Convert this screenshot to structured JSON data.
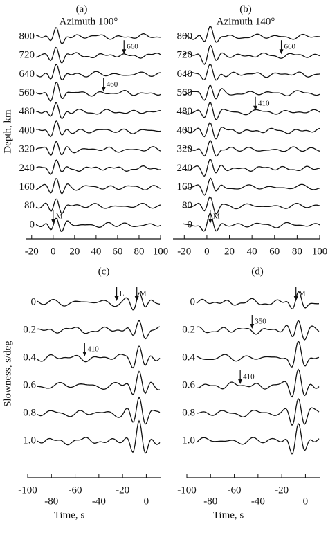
{
  "chart_data": [
    {
      "type": "waveform",
      "panel_label": "(a)",
      "title": "Azimuth 100°",
      "ylabel": "Depth, km",
      "categories": [
        "800",
        "720",
        "640",
        "560",
        "480",
        "400",
        "320",
        "240",
        "160",
        "80",
        "0"
      ],
      "xlim": [
        -25,
        100
      ],
      "xticks": [
        -20,
        0,
        20,
        40,
        60,
        80,
        100
      ],
      "annotations": [
        {
          "text": "M",
          "x": 0,
          "trace": "0"
        },
        {
          "text": "660",
          "x": 66,
          "trace": "720"
        },
        {
          "text": "460",
          "x": 47,
          "trace": "560"
        }
      ]
    },
    {
      "type": "waveform",
      "panel_label": "(b)",
      "title": "Azimuth 140°",
      "categories": [
        "800",
        "720",
        "640",
        "560",
        "480",
        "400",
        "320",
        "240",
        "160",
        "80",
        "0"
      ],
      "xlim": [
        -30,
        100
      ],
      "xticks": [
        -20,
        0,
        20,
        40,
        60,
        80,
        100
      ],
      "annotations": [
        {
          "text": "M",
          "x": 3,
          "trace": "0"
        },
        {
          "text": "660",
          "x": 66,
          "trace": "720"
        },
        {
          "text": "410",
          "x": 43,
          "trace": "480"
        }
      ]
    },
    {
      "type": "waveform",
      "panel_label": "(c)",
      "ylabel": "Slowness, s/deg",
      "xlabel": "Time, s",
      "categories": [
        "0",
        "0.2",
        "0.4",
        "0.6",
        "0.8",
        "1.0"
      ],
      "xlim": [
        -100,
        12
      ],
      "xticks": [
        -100,
        -80,
        -60,
        -40,
        -20,
        0
      ],
      "annotations": [
        {
          "text": "L",
          "x": -25,
          "trace": "0"
        },
        {
          "text": "M",
          "x": -8,
          "trace": "0"
        },
        {
          "text": "410",
          "x": -52,
          "trace": "0.4"
        }
      ]
    },
    {
      "type": "waveform",
      "panel_label": "(d)",
      "xlabel": "Time, s",
      "categories": [
        "0",
        "0.2",
        "0.4",
        "0.6",
        "0.8",
        "1.0"
      ],
      "xlim": [
        -100,
        12
      ],
      "xticks": [
        -100,
        -80,
        -60,
        -40,
        -20,
        0
      ],
      "annotations": [
        {
          "text": "M",
          "x": -8,
          "trace": "0"
        },
        {
          "text": "350",
          "x": -45,
          "trace": "0.2"
        },
        {
          "text": "410",
          "x": -55,
          "trace": "0.6"
        }
      ]
    }
  ]
}
